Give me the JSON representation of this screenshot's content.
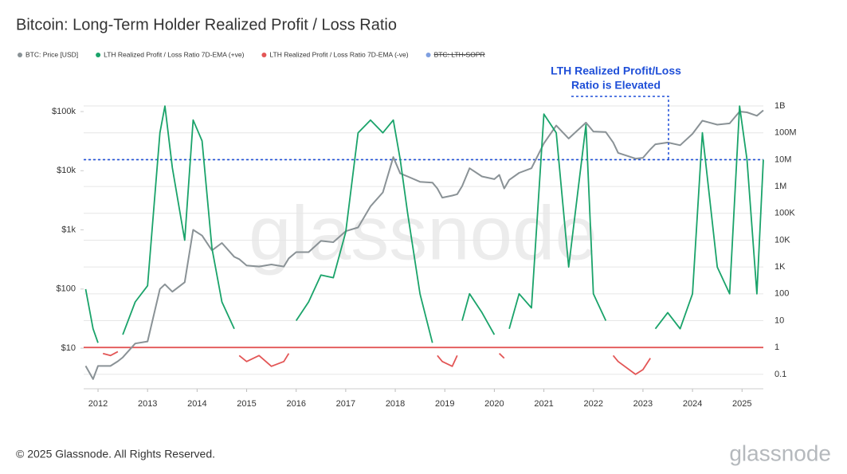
{
  "chart_data": {
    "type": "line",
    "title": "Bitcoin: Long-Term Holder Realized Profit / Loss Ratio",
    "x": [
      2011.75,
      2011.9,
      2012.0,
      2012.1,
      2012.25,
      2012.4,
      2012.5,
      2012.75,
      2013.0,
      2013.25,
      2013.35,
      2013.5,
      2013.75,
      2013.92,
      2014.1,
      2014.3,
      2014.5,
      2014.75,
      2014.85,
      2015.0,
      2015.25,
      2015.5,
      2015.75,
      2015.85,
      2016.0,
      2016.25,
      2016.5,
      2016.75,
      2017.0,
      2017.25,
      2017.5,
      2017.75,
      2017.96,
      2018.1,
      2018.25,
      2018.5,
      2018.75,
      2018.85,
      2018.95,
      2019.15,
      2019.25,
      2019.35,
      2019.5,
      2019.75,
      2020.0,
      2020.1,
      2020.2,
      2020.3,
      2020.5,
      2020.75,
      2021.0,
      2021.25,
      2021.5,
      2021.85,
      2022.0,
      2022.25,
      2022.4,
      2022.5,
      2022.85,
      2023.0,
      2023.15,
      2023.25,
      2023.5,
      2023.75,
      2024.0,
      2024.2,
      2024.5,
      2024.75,
      2024.95,
      2025.1,
      2025.3,
      2025.43
    ],
    "series": [
      {
        "name": "BTC: Price [USD]",
        "color": "#8a9296",
        "axis": "y",
        "values": [
          5,
          3,
          5,
          5,
          5,
          6,
          7,
          12,
          13,
          100,
          120,
          90,
          130,
          1000,
          800,
          450,
          600,
          350,
          320,
          250,
          240,
          260,
          240,
          330,
          420,
          420,
          650,
          620,
          950,
          1100,
          2500,
          4300,
          17000,
          9000,
          8000,
          6500,
          6300,
          5000,
          3500,
          3800,
          4000,
          5500,
          11000,
          8000,
          7200,
          8500,
          5000,
          7000,
          9200,
          11000,
          29000,
          58000,
          35000,
          65000,
          46000,
          45000,
          30000,
          20000,
          16000,
          16500,
          23000,
          28000,
          30000,
          27000,
          42000,
          70000,
          60000,
          63000,
          100000,
          97000,
          85000,
          105000
        ]
      },
      {
        "name": "LTH Realized Profit / Loss Ratio 7D-EMA (+ve)",
        "color": "#1aa36a",
        "axis": "y2",
        "values": [
          150,
          5,
          1.5,
          null,
          null,
          null,
          3,
          50,
          200,
          100000000,
          1000000000,
          5000000,
          10000,
          300000000,
          50000000,
          5000,
          50,
          5,
          null,
          null,
          null,
          null,
          null,
          null,
          10,
          50,
          500,
          400,
          20000,
          100000000,
          300000000,
          100000000,
          300000000,
          10000000,
          100000,
          100,
          1.5,
          null,
          null,
          null,
          null,
          10,
          100,
          20,
          3,
          null,
          null,
          5,
          100,
          30,
          500000000,
          100000000,
          1000,
          200000000,
          100,
          10,
          null,
          null,
          null,
          null,
          null,
          5,
          20,
          5,
          100,
          100000000,
          1000,
          100,
          1000000000,
          10000000,
          100,
          10000000
        ]
      },
      {
        "name": "LTH Realized Profit / Loss Ratio 7D-EMA (-ve)",
        "color": "#e35656",
        "axis": "y2",
        "values": [
          null,
          null,
          null,
          0.6,
          0.5,
          0.7,
          null,
          null,
          null,
          null,
          null,
          null,
          null,
          null,
          null,
          null,
          null,
          null,
          0.5,
          0.3,
          0.5,
          0.2,
          0.3,
          0.6,
          null,
          null,
          null,
          null,
          null,
          null,
          null,
          null,
          null,
          null,
          null,
          null,
          null,
          0.5,
          0.3,
          0.2,
          0.5,
          null,
          null,
          null,
          null,
          0.6,
          0.4,
          null,
          null,
          null,
          null,
          null,
          null,
          null,
          null,
          null,
          0.5,
          0.3,
          0.1,
          0.15,
          0.4,
          null,
          null,
          null,
          null,
          null,
          null,
          null,
          null,
          null,
          null,
          null
        ]
      }
    ],
    "legend_hidden": [
      {
        "name": "BTC: LTH-SOPR",
        "color": "#7f9fe0"
      }
    ],
    "xlim": [
      2011.71,
      2025.43
    ],
    "xticks": [
      2012,
      2013,
      2014,
      2015,
      2016,
      2017,
      2018,
      2019,
      2020,
      2021,
      2022,
      2023,
      2024,
      2025
    ],
    "ylim": [
      2.06,
      198000
    ],
    "yscale": "log",
    "yticks": [
      {
        "value": 10,
        "label": "$10"
      },
      {
        "value": 100,
        "label": "$100"
      },
      {
        "value": 1000,
        "label": "$1k"
      },
      {
        "value": 10000,
        "label": "$10k"
      },
      {
        "value": 100000,
        "label": "$100k"
      }
    ],
    "y2lim": [
      0.029,
      2800000000
    ],
    "y2scale": "log",
    "y2ticks": [
      0.1,
      1,
      10,
      100,
      {
        "value": 1000,
        "label": "1K"
      },
      {
        "value": 10000,
        "label": "10K"
      },
      {
        "value": 100000,
        "label": "100K"
      },
      {
        "value": 1000000,
        "label": "1M"
      },
      {
        "value": 10000000,
        "label": "10M"
      },
      {
        "value": 100000000,
        "label": "100M"
      },
      {
        "value": 1000000000,
        "label": "1B"
      }
    ],
    "grid": true,
    "reference_lines": [
      {
        "value": 1,
        "axis": "y2",
        "color": "#e35656",
        "style": "solid"
      },
      {
        "value": 10000000,
        "axis": "y2",
        "color": "#1f4fd8",
        "style": "dotted"
      }
    ],
    "annotation": {
      "lines": [
        "LTH Realized Profit/Loss",
        "Ratio is Elevated"
      ],
      "color": "#1f4fd8"
    },
    "watermark": "glassnode",
    "footer": "© 2025 Glassnode. All Rights Reserved.",
    "logo": "glassnode"
  }
}
